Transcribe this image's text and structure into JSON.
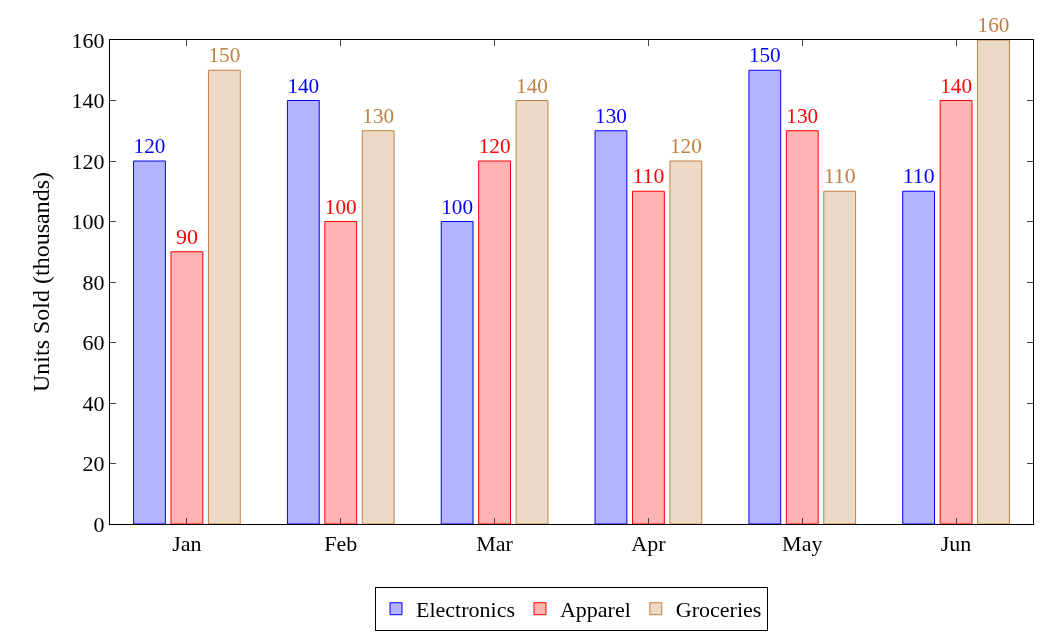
{
  "chart_data": {
    "type": "bar",
    "ylabel": "Units Sold (thousands)",
    "categories": [
      "Jan",
      "Feb",
      "Mar",
      "Apr",
      "May",
      "Jun"
    ],
    "series": [
      {
        "name": "Electronics",
        "color": "#b3b3ff",
        "values": [
          120,
          140,
          100,
          130,
          150,
          110
        ]
      },
      {
        "name": "Apparel",
        "color": "#ffb3b3",
        "values": [
          90,
          100,
          120,
          110,
          130,
          140
        ]
      },
      {
        "name": "Groceries",
        "color": "#ecd9c6",
        "values": [
          150,
          130,
          140,
          120,
          110,
          160
        ]
      }
    ],
    "ylim": [
      0,
      160
    ],
    "yticks": [
      0,
      20,
      40,
      60,
      80,
      100,
      120,
      140,
      160
    ],
    "legend": "bottom",
    "data_labels": true
  }
}
